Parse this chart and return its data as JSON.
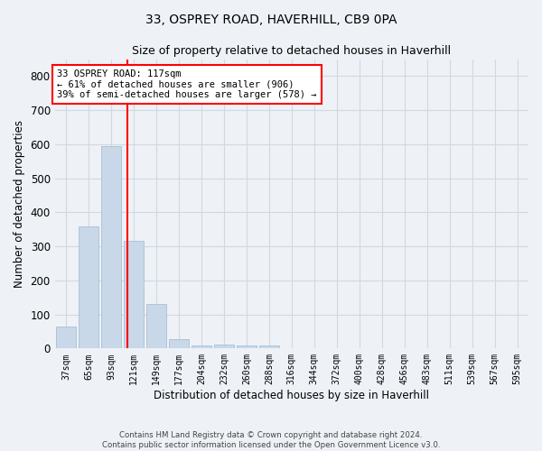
{
  "title": "33, OSPREY ROAD, HAVERHILL, CB9 0PA",
  "subtitle": "Size of property relative to detached houses in Haverhill",
  "xlabel": "Distribution of detached houses by size in Haverhill",
  "ylabel": "Number of detached properties",
  "footer_line1": "Contains HM Land Registry data © Crown copyright and database right 2024.",
  "footer_line2": "Contains public sector information licensed under the Open Government Licence v3.0.",
  "categories": [
    "37sqm",
    "65sqm",
    "93sqm",
    "121sqm",
    "149sqm",
    "177sqm",
    "204sqm",
    "232sqm",
    "260sqm",
    "288sqm",
    "316sqm",
    "344sqm",
    "372sqm",
    "400sqm",
    "428sqm",
    "456sqm",
    "483sqm",
    "511sqm",
    "539sqm",
    "567sqm",
    "595sqm"
  ],
  "values": [
    65,
    358,
    595,
    315,
    130,
    28,
    10,
    12,
    10,
    8,
    0,
    0,
    0,
    0,
    0,
    0,
    0,
    0,
    0,
    0,
    0
  ],
  "bar_color": "#c8d8e8",
  "bar_edge_color": "#a0b8cc",
  "grid_color": "#d0d8e0",
  "background_color": "#eef2f7",
  "property_line_x": 2.72,
  "annotation_text_line1": "33 OSPREY ROAD: 117sqm",
  "annotation_text_line2": "← 61% of detached houses are smaller (906)",
  "annotation_text_line3": "39% of semi-detached houses are larger (578) →",
  "annotation_box_color": "white",
  "annotation_box_edge_color": "red",
  "property_line_color": "red",
  "ylim": [
    0,
    850
  ],
  "yticks": [
    0,
    100,
    200,
    300,
    400,
    500,
    600,
    700,
    800
  ]
}
